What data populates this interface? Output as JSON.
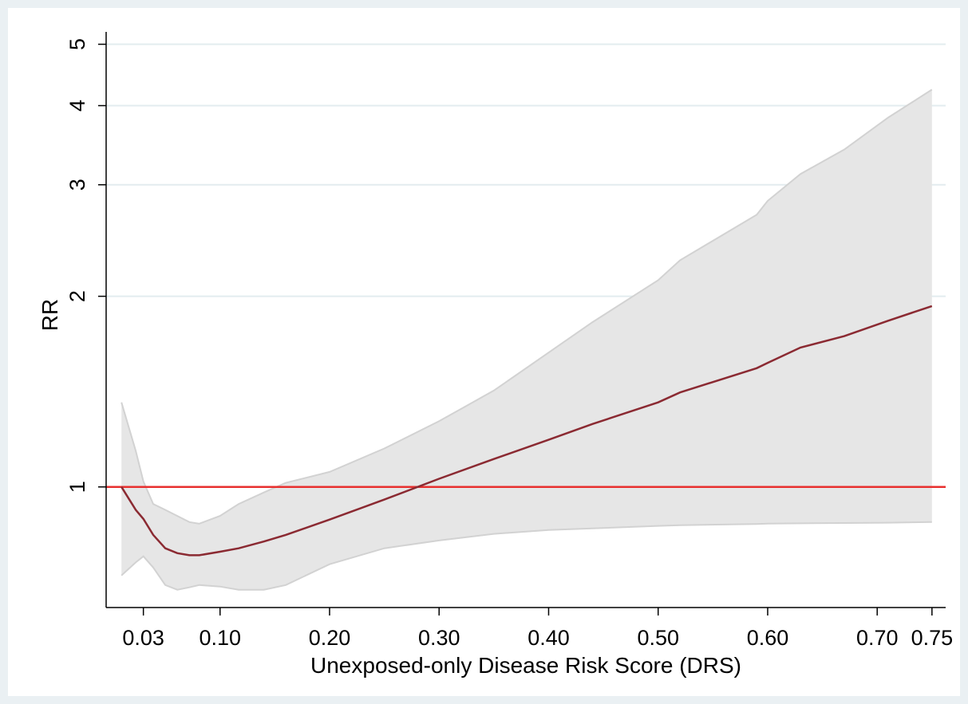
{
  "chart_data": {
    "type": "line",
    "x_label": "Unexposed-only Disease Risk Score (DRS)",
    "y_label": "RR",
    "x": [
      0.01,
      0.023,
      0.03,
      0.039,
      0.05,
      0.061,
      0.072,
      0.081,
      0.1,
      0.117,
      0.14,
      0.16,
      0.2,
      0.25,
      0.3,
      0.35,
      0.4,
      0.44,
      0.5,
      0.52,
      0.59,
      0.6,
      0.63,
      0.67,
      0.71,
      0.75
    ],
    "series": [
      {
        "color": "#8b2a32",
        "values": [
          1.0,
          0.92,
          0.89,
          0.84,
          0.8,
          0.786,
          0.78,
          0.78,
          0.79,
          0.8,
          0.82,
          0.84,
          0.888,
          0.955,
          1.03,
          1.107,
          1.187,
          1.257,
          1.36,
          1.41,
          1.54,
          1.57,
          1.66,
          1.73,
          1.83,
          1.93
        ]
      }
    ],
    "band": {
      "color": "#e6e6e6",
      "edge_color": "#d2d2d2",
      "upper": [
        1.36,
        1.14,
        1.02,
        0.94,
        0.92,
        0.9,
        0.88,
        0.875,
        0.9,
        0.94,
        0.98,
        1.015,
        1.056,
        1.15,
        1.27,
        1.42,
        1.63,
        1.82,
        2.12,
        2.28,
        2.69,
        2.83,
        3.12,
        3.41,
        3.83,
        4.24
      ],
      "lower": [
        0.725,
        0.76,
        0.777,
        0.746,
        0.7,
        0.688,
        0.694,
        0.7,
        0.696,
        0.688,
        0.688,
        0.7,
        0.755,
        0.8,
        0.823,
        0.843,
        0.855,
        0.86,
        0.868,
        0.87,
        0.874,
        0.875,
        0.876,
        0.877,
        0.878,
        0.88
      ]
    },
    "reference_line": {
      "value": 1,
      "color": "#e8302f"
    },
    "xlim": [
      -0.004,
      0.7625
    ],
    "xticks": [
      0.03,
      {
        "value": 0.1,
        "label": "0.10"
      },
      {
        "value": 0.2,
        "label": "0.20"
      },
      {
        "value": 0.3,
        "label": "0.30"
      },
      {
        "value": 0.4,
        "label": "0.40"
      },
      {
        "value": 0.5,
        "label": "0.50"
      },
      {
        "value": 0.6,
        "label": "0.60"
      },
      {
        "value": 0.7,
        "label": "0.70"
      },
      0.75
    ],
    "ylim": [
      0.645,
      5.23
    ],
    "yticks": [
      1,
      2,
      3,
      4,
      5
    ],
    "y_log": true,
    "grid": true
  }
}
